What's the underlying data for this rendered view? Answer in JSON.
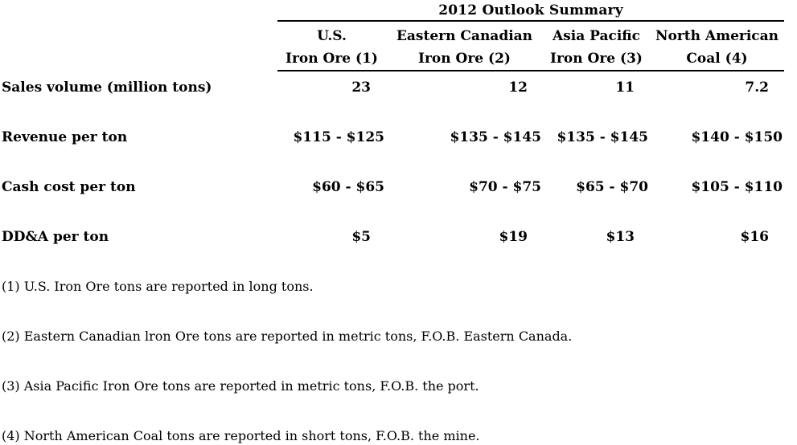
{
  "table": {
    "title": "2012 Outlook Summary",
    "columns": [
      {
        "line1": "U.S.",
        "line2": "Iron Ore (1)"
      },
      {
        "line1": "Eastern Canadian",
        "line2": "Iron Ore (2)"
      },
      {
        "line1": "Asia Pacific",
        "line2": "Iron Ore (3)"
      },
      {
        "line1": "North American",
        "line2": "Coal (4)"
      }
    ],
    "rows": [
      {
        "label": "Sales volume (million tons)",
        "values": [
          "23",
          "12",
          "11",
          "7.2"
        ]
      },
      {
        "label": "Revenue per ton",
        "values": [
          "$115 - $125",
          "$135 - $145",
          "$135 - $145",
          "$140 - $150"
        ]
      },
      {
        "label": "Cash cost per ton",
        "values": [
          "$60 - $65",
          "$70 - $75",
          "$65 - $70",
          "$105 - $110"
        ]
      },
      {
        "label": "DD&A per ton",
        "values": [
          "$5",
          "$19",
          "$13",
          "$16"
        ]
      }
    ]
  },
  "footnotes": [
    "(1) U.S. Iron Ore tons are reported in long tons.",
    "(2) Eastern Canadian lron Ore tons are reported in metric tons, F.O.B. Eastern Canada.",
    "(3) Asia Pacific Iron Ore tons are reported in metric tons, F.O.B. the port.",
    "(4) North American Coal tons are reported in short tons, F.O.B. the mine."
  ],
  "colors": {
    "text": "#000000",
    "background": "#ffffff",
    "rule": "#000000"
  }
}
